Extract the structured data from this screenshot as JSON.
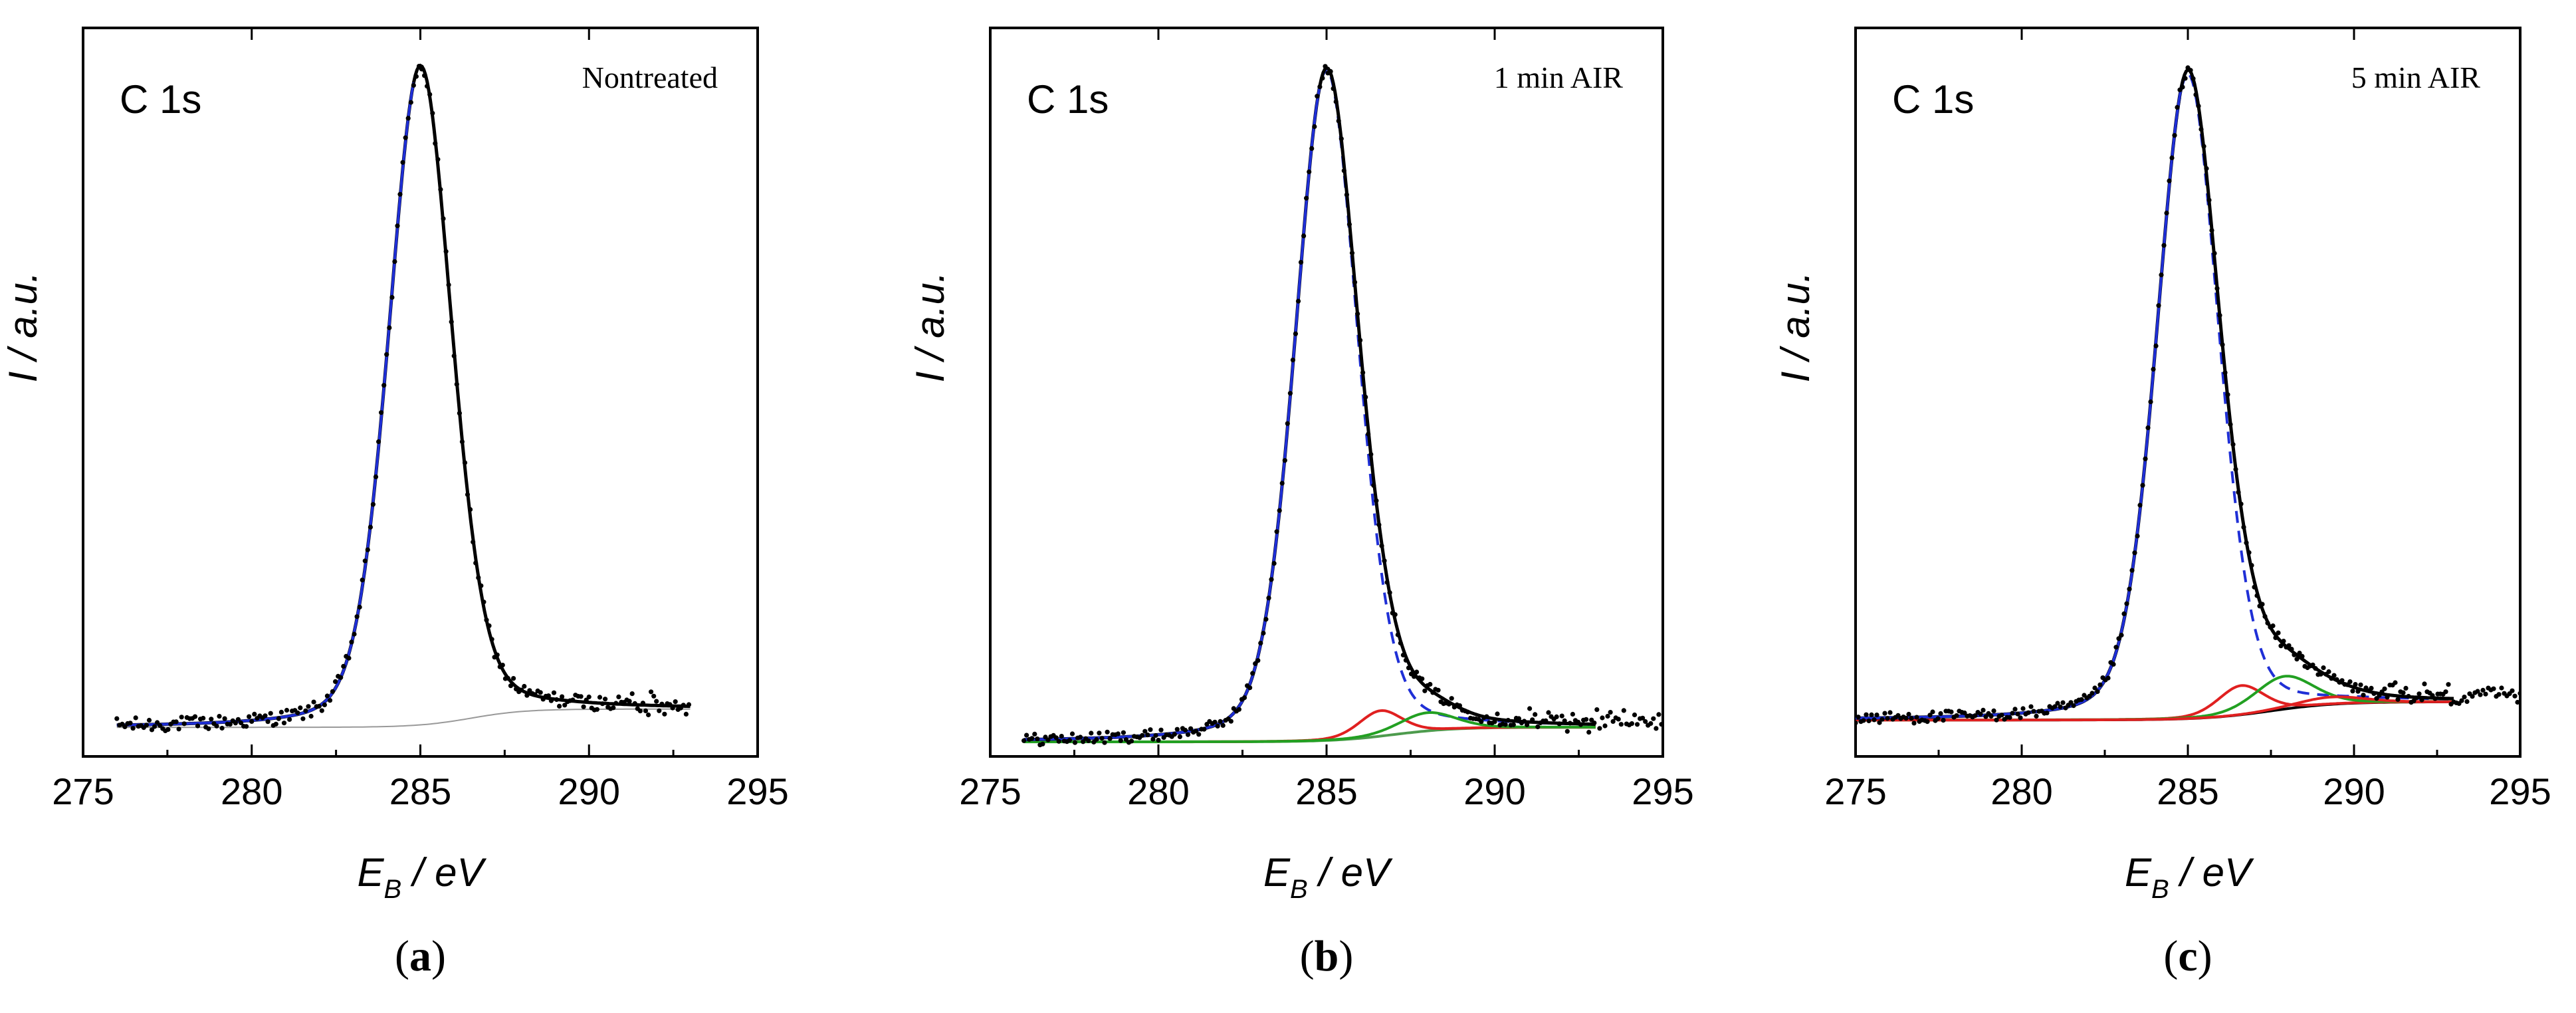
{
  "chart_data": [
    {
      "type": "line",
      "panel": "a",
      "panel_label": "a",
      "core_level": "C 1s",
      "sample": "Nontreated",
      "xlabel_main": "E",
      "xlabel_sub": "B",
      "xlabel_unit": " / eV",
      "ylabel": "I / a.u.",
      "xlim": [
        275,
        295
      ],
      "ylim": [
        0,
        1
      ],
      "xticks": [
        275,
        280,
        285,
        290,
        295
      ],
      "background": {
        "color": "#999999",
        "start": 0.04,
        "end": 0.065,
        "center": 286.5,
        "width": 0.8
      },
      "components": [
        {
          "name": "main",
          "center": 285.0,
          "height": 0.905,
          "sigma": 0.95,
          "color": "#1f2fd6",
          "dashed": false
        }
      ],
      "envelope": {
        "color": "#1f2fd6"
      },
      "raw_data": {
        "color": "#000000",
        "xmin": 276.0,
        "xmax": 293.0,
        "noise": 0.01
      }
    },
    {
      "type": "line",
      "panel": "b",
      "panel_label": "b",
      "core_level": "C 1s",
      "sample": "1 min AIR",
      "xlabel_main": "E",
      "xlabel_sub": "B",
      "xlabel_unit": " / eV",
      "ylabel": "I / a.u.",
      "xlim": [
        275,
        295
      ],
      "ylim": [
        0,
        1
      ],
      "xticks": [
        275,
        280,
        285,
        290,
        295
      ],
      "background": {
        "color": "#4d9b4d",
        "start": 0.02,
        "end": 0.04,
        "center": 287.0,
        "width": 0.9
      },
      "components": [
        {
          "name": "main",
          "center": 285.0,
          "height": 0.92,
          "sigma": 0.95,
          "color": "#1f2fd6",
          "dashed": true
        },
        {
          "name": "red",
          "center": 286.6,
          "height": 0.035,
          "sigma": 0.65,
          "color": "#e02020",
          "dashed": false
        },
        {
          "name": "green",
          "center": 288.0,
          "height": 0.025,
          "sigma": 0.85,
          "color": "#22a022",
          "dashed": false
        }
      ],
      "envelope": {
        "color": "#1f2fd6"
      },
      "raw_data": {
        "color": "#000000",
        "xmin": 276.0,
        "xmax": 295.0,
        "noise": 0.008
      }
    },
    {
      "type": "line",
      "panel": "c",
      "panel_label": "c",
      "core_level": "C 1s",
      "sample": "5 min AIR",
      "xlabel_main": "E",
      "xlabel_sub": "B",
      "xlabel_unit": " / eV",
      "ylabel": "I / a.u.",
      "xlim": [
        275,
        295
      ],
      "ylim": [
        0,
        1
      ],
      "xticks": [
        275,
        280,
        285,
        290,
        295
      ],
      "background": {
        "color": "#000000",
        "start": 0.05,
        "end": 0.075,
        "center": 287.5,
        "width": 1.0
      },
      "components": [
        {
          "name": "main",
          "center": 285.0,
          "height": 0.885,
          "sigma": 0.95,
          "color": "#1f2fd6",
          "dashed": true
        },
        {
          "name": "red",
          "center": 286.6,
          "height": 0.04,
          "sigma": 0.7,
          "color": "#e02020",
          "dashed": false
        },
        {
          "name": "green",
          "center": 287.9,
          "height": 0.045,
          "sigma": 0.9,
          "color": "#22a022",
          "dashed": false
        },
        {
          "name": "tail",
          "center": 289.3,
          "height": 0.01,
          "sigma": 1.0,
          "color": "#e02020",
          "dashed": false
        }
      ],
      "envelope": {
        "color": "#1f2fd6"
      },
      "raw_data": {
        "color": "#000000",
        "xmin": 275.0,
        "xmax": 295.0,
        "noise": 0.008
      }
    }
  ]
}
